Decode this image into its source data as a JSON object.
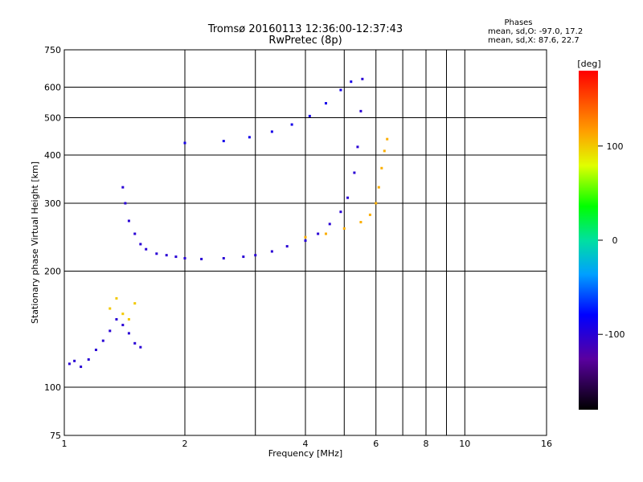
{
  "chart_data": {
    "type": "scatter",
    "title": "Tromsø 20160113 12:36:00-12:37:43",
    "subtitle": "RwPretec (8p)",
    "xlabel": "Frequency [MHz]",
    "ylabel": "Stationary phase Virtual Height [km]",
    "x_scale": "log",
    "y_scale": "log",
    "xlim": [
      1,
      16
    ],
    "ylim": [
      75,
      750
    ],
    "x_ticks": [
      1,
      2,
      4,
      6,
      8,
      10,
      16
    ],
    "x_minor_ticks": [
      3,
      5,
      7,
      9
    ],
    "y_ticks": [
      75,
      100,
      200,
      300,
      400,
      500,
      600,
      750
    ],
    "grid": true,
    "phase_info": {
      "heading": "Phases",
      "line_o": "mean, sd,O: -97.0, 17.2",
      "line_x": "mean, sd,X:  87.6, 22.7"
    },
    "colorbar": {
      "label": "[deg]",
      "range": [
        -180,
        180
      ],
      "ticks": [
        100,
        0,
        -100
      ],
      "tick_labels": [
        "100",
        "0",
        "-100"
      ]
    },
    "traces": [
      {
        "name": "",
        "phase": -100,
        "points": [
          [
            1.03,
            115
          ],
          [
            1.06,
            117
          ],
          [
            1.1,
            113
          ],
          [
            1.15,
            118
          ],
          [
            1.2,
            125
          ],
          [
            1.25,
            132
          ],
          [
            1.3,
            140
          ],
          [
            1.35,
            150
          ],
          [
            1.4,
            145
          ],
          [
            1.45,
            138
          ],
          [
            1.5,
            130
          ],
          [
            1.55,
            127
          ]
        ]
      },
      {
        "name": "",
        "phase": 100,
        "points": [
          [
            1.3,
            160
          ],
          [
            1.35,
            170
          ],
          [
            1.4,
            155
          ],
          [
            1.45,
            150
          ],
          [
            1.5,
            165
          ]
        ]
      },
      {
        "name": "",
        "phase": -100,
        "points": [
          [
            1.4,
            330
          ],
          [
            1.42,
            300
          ],
          [
            1.45,
            270
          ],
          [
            1.5,
            250
          ],
          [
            1.55,
            235
          ],
          [
            1.6,
            228
          ],
          [
            1.7,
            222
          ],
          [
            1.8,
            220
          ],
          [
            1.9,
            218
          ],
          [
            2.0,
            216
          ],
          [
            2.2,
            215
          ],
          [
            2.5,
            216
          ],
          [
            2.8,
            218
          ],
          [
            3.0,
            220
          ],
          [
            3.3,
            225
          ],
          [
            3.6,
            232
          ],
          [
            4.0,
            240
          ],
          [
            4.3,
            250
          ],
          [
            4.6,
            265
          ],
          [
            4.9,
            285
          ],
          [
            5.1,
            310
          ],
          [
            5.3,
            360
          ],
          [
            5.4,
            420
          ],
          [
            5.5,
            520
          ],
          [
            5.55,
            630
          ]
        ]
      },
      {
        "name": "",
        "phase": -90,
        "points": [
          [
            2.0,
            430
          ],
          [
            2.5,
            435
          ],
          [
            2.9,
            445
          ],
          [
            3.3,
            460
          ],
          [
            3.7,
            480
          ],
          [
            4.1,
            505
          ],
          [
            4.5,
            545
          ],
          [
            4.9,
            590
          ],
          [
            5.2,
            620
          ]
        ]
      },
      {
        "name": "",
        "phase": 110,
        "points": [
          [
            4.0,
            245
          ],
          [
            4.5,
            250
          ],
          [
            5.0,
            258
          ],
          [
            5.5,
            268
          ],
          [
            5.8,
            280
          ],
          [
            6.0,
            300
          ],
          [
            6.1,
            330
          ],
          [
            6.2,
            370
          ],
          [
            6.3,
            410
          ],
          [
            6.4,
            440
          ]
        ]
      }
    ]
  }
}
